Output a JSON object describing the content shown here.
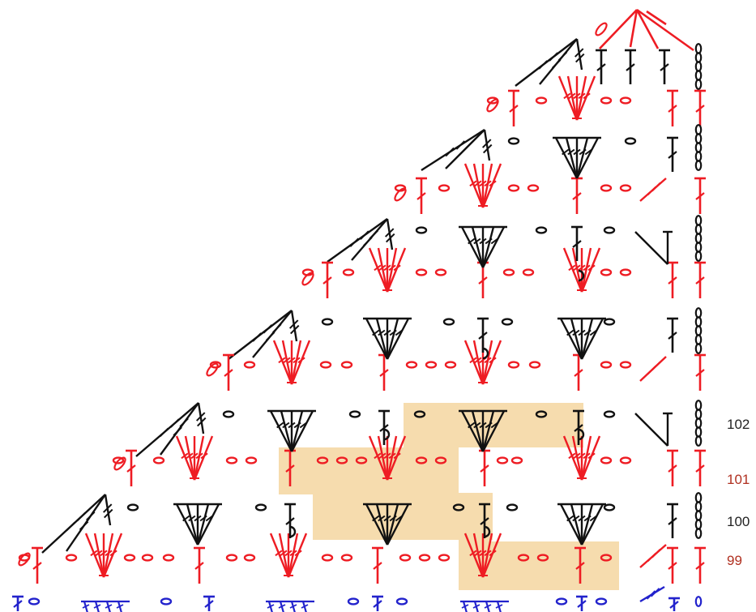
{
  "colors": {
    "rowOdd": "#ee1c23",
    "rowEven": "#111111",
    "base": "#2222cc",
    "highlight": "#f6dcae",
    "labelOdd": "#b03020",
    "labelEven": "#222222"
  },
  "row_labels": [
    {
      "text": "102",
      "row": 102
    },
    {
      "text": "101",
      "row": 101
    },
    {
      "text": "100",
      "row": 100
    },
    {
      "text": "99",
      "row": 99
    }
  ],
  "symbol_names": [
    "chain",
    "double-crochet",
    "treble",
    "fan-cluster",
    "shell-cluster",
    "decrease"
  ]
}
